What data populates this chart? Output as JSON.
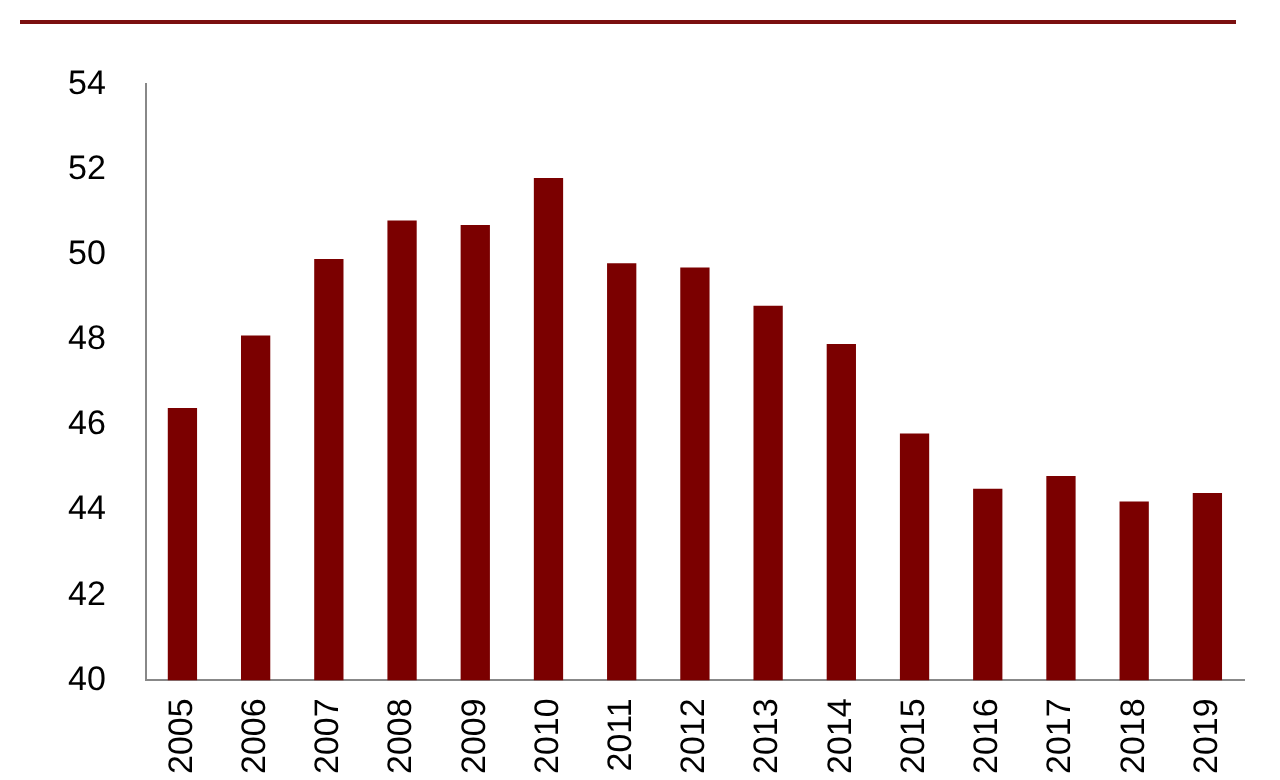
{
  "chart_data": {
    "type": "bar",
    "categories": [
      "2005",
      "2006",
      "2007",
      "2008",
      "2009",
      "2010",
      "2011",
      "2012",
      "2013",
      "2014",
      "2015",
      "2016",
      "2017",
      "2018",
      "2019"
    ],
    "values": [
      46.4,
      48.1,
      49.9,
      50.8,
      50.7,
      51.8,
      49.8,
      49.7,
      48.8,
      47.9,
      45.8,
      44.5,
      44.8,
      44.2,
      44.4
    ],
    "color": "#7b0000",
    "ylim": [
      40,
      54
    ],
    "yticks": [
      40,
      42,
      44,
      46,
      48,
      50,
      52,
      54
    ],
    "grid": false,
    "legend": false
  }
}
